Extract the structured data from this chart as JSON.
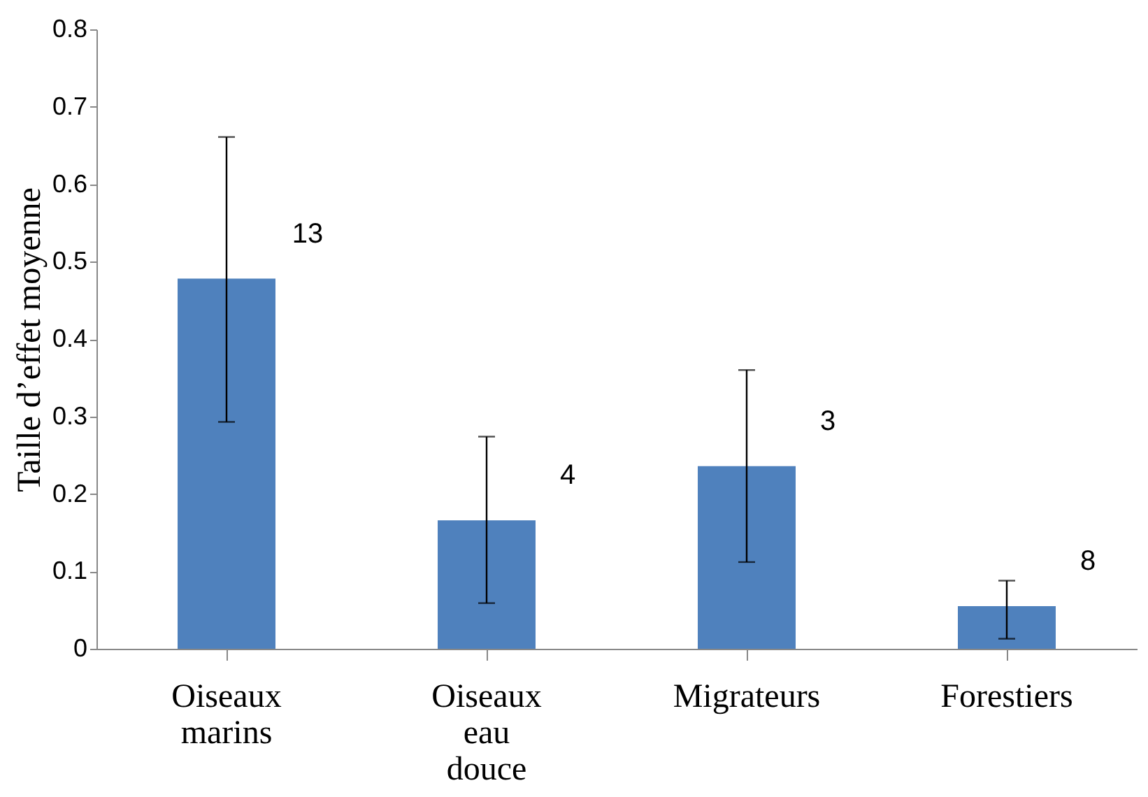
{
  "chart_data": {
    "type": "bar",
    "ylabel": "Taille d’effet moyenne",
    "categories": [
      "Oiseaux marins",
      "Oiseaux eau douce",
      "Migrateurs",
      "Forestiers"
    ],
    "values": [
      0.478,
      0.166,
      0.236,
      0.055
    ],
    "errors": [
      [
        0.293,
        0.661
      ],
      [
        0.059,
        0.274
      ],
      [
        0.112,
        0.36
      ],
      [
        0.013,
        0.088
      ]
    ],
    "color": "#4f81bd",
    "ylim": [
      0,
      0.8
    ],
    "yticks": [
      0,
      0.1,
      0.2,
      0.3,
      0.4,
      0.5,
      0.6,
      0.7,
      0.8
    ],
    "grid": false,
    "annotations": [
      "13",
      "4",
      "3",
      "8"
    ]
  }
}
